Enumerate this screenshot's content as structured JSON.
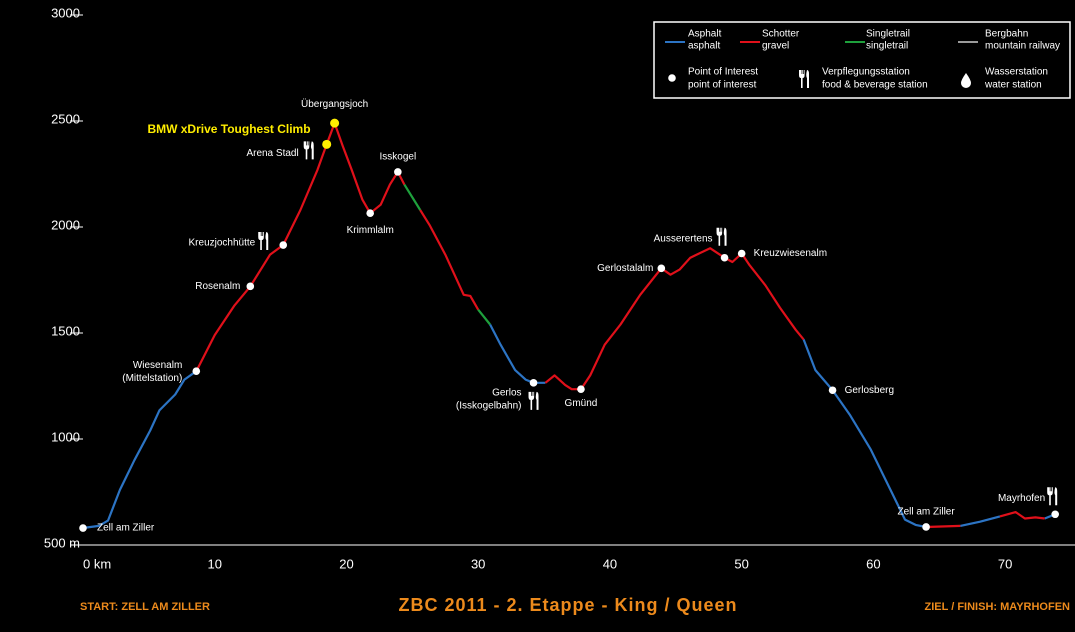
{
  "chart_data": {
    "type": "line",
    "title": "ZBC 2011 - 2. Etappe - King / Queen",
    "start_label": "START:  ZELL AM ZILLER",
    "finish_label": "ZIEL / FINISH:  MAYRHOFEN",
    "annotation": "BMW xDrive Toughest Climb",
    "xlim": [
      0,
      75
    ],
    "ylim": [
      500,
      3000
    ],
    "xticks": [
      {
        "value": 0,
        "label": "0 km"
      },
      10,
      20,
      30,
      40,
      50,
      60,
      70
    ],
    "yticks": [
      {
        "value": 500,
        "label": "500 m"
      },
      1000,
      1500,
      2000,
      2500,
      3000
    ],
    "series": [
      {
        "name": "Asphalt",
        "subtitle": "asphalt",
        "color": "#2c74c4",
        "x": [
          0,
          1.2,
          1.9,
          2.8,
          3.9,
          5.1,
          5.8,
          7.0,
          7.7,
          8.6,
          null,
          30.9,
          31.7,
          32.8,
          33.6,
          34.2,
          35.1,
          null,
          54.7,
          55.6,
          56.9,
          58.2,
          59.8,
          61.3,
          62.4,
          63.2,
          64.0,
          null,
          66.6,
          68.1,
          69.6,
          null,
          73.0,
          73.8
        ],
        "values": [
          580,
          590,
          615,
          760,
          900,
          1040,
          1135,
          1210,
          1280,
          1320,
          null,
          1540,
          1445,
          1325,
          1280,
          1265,
          1265,
          null,
          1470,
          1325,
          1230,
          1115,
          950,
          760,
          620,
          595,
          585,
          null,
          590,
          610,
          635,
          null,
          625,
          645
        ]
      },
      {
        "name": "Schotter",
        "subtitle": "gravel",
        "color": "#e0101a",
        "x": [
          8.6,
          10.0,
          11.5,
          12.7,
          14.2,
          15.2,
          16.5,
          17.8,
          18.5,
          19.1,
          19.7,
          20.4,
          21.2,
          21.8,
          22.6,
          23.3,
          23.9,
          24.4,
          null,
          25.6,
          26.3,
          27.5,
          28.2,
          28.9,
          29.4,
          30.0,
          null,
          35.1,
          35.8,
          36.6,
          37.1,
          37.8,
          38.5,
          39.6,
          40.8,
          42.3,
          43.9,
          44.6,
          45.3,
          46.1,
          47.6,
          48.7,
          49.3,
          50.0,
          50.6,
          51.8,
          52.9,
          54.1,
          54.7,
          null,
          64.0,
          66.6,
          null,
          69.6,
          70.8,
          71.5,
          72.3,
          73.0
        ],
        "values": [
          1320,
          1490,
          1630,
          1720,
          1870,
          1915,
          2080,
          2270,
          2390,
          2490,
          2385,
          2270,
          2130,
          2065,
          2105,
          2200,
          2260,
          2200,
          null,
          2080,
          2010,
          1870,
          1775,
          1680,
          1675,
          1610,
          null,
          1265,
          1300,
          1255,
          1235,
          1235,
          1300,
          1445,
          1540,
          1680,
          1805,
          1775,
          1800,
          1855,
          1900,
          1855,
          1835,
          1875,
          1820,
          1725,
          1620,
          1515,
          1470,
          null,
          585,
          590,
          null,
          635,
          655,
          625,
          630,
          625
        ]
      },
      {
        "name": "Singletrail",
        "subtitle": "singletrail",
        "color": "#1ea03c",
        "x": [
          24.4,
          25.6,
          null,
          30.0,
          30.9
        ],
        "values": [
          2200,
          2080,
          null,
          1610,
          1540
        ]
      },
      {
        "name": "Bergbahn",
        "subtitle": "mountain railway",
        "color": "#9a9a9a",
        "x": [],
        "values": []
      }
    ],
    "markers": [
      {
        "name": "Point of Interest",
        "subtitle": "point of interest"
      },
      {
        "name": "Verpflegungsstation",
        "subtitle": "food & beverage station"
      },
      {
        "name": "Wasserstation",
        "subtitle": "water station"
      }
    ],
    "points": [
      {
        "label": [
          "Zell am Ziller"
        ],
        "x": 0,
        "y": 580,
        "color": "#ffffff",
        "food": false
      },
      {
        "label": [
          "Wiesenalm",
          "(Mittelstation)"
        ],
        "x": 8.6,
        "y": 1320,
        "color": "#ffffff",
        "food": false
      },
      {
        "label": [
          "Rosenalm"
        ],
        "x": 12.7,
        "y": 1720,
        "color": "#ffffff",
        "food": false
      },
      {
        "label": [
          "Kreuzjochhütte"
        ],
        "x": 15.2,
        "y": 1915,
        "color": "#ffffff",
        "food": true
      },
      {
        "label": [
          "Arena Stadl"
        ],
        "x": 18.5,
        "y": 2390,
        "color": "#ffee00",
        "food": true
      },
      {
        "label": [
          "Übergangsjoch"
        ],
        "x": 19.1,
        "y": 2490,
        "color": "#ffee00",
        "food": false
      },
      {
        "label": [
          "Isskogel"
        ],
        "x": 23.9,
        "y": 2260,
        "color": "#ffffff",
        "food": false
      },
      {
        "label": [
          "Krimmlalm"
        ],
        "x": 21.8,
        "y": 2065,
        "color": "#ffffff",
        "food": false
      },
      {
        "label": [
          "Gerlos",
          "(Isskogelbahn)"
        ],
        "x": 34.2,
        "y": 1265,
        "color": "#ffffff",
        "food": true
      },
      {
        "label": [
          "Gmünd"
        ],
        "x": 37.8,
        "y": 1235,
        "color": "#ffffff",
        "food": false
      },
      {
        "label": [
          "Gerlostalalm"
        ],
        "x": 43.9,
        "y": 1805,
        "color": "#ffffff",
        "food": false
      },
      {
        "label": [
          "Ausserertens"
        ],
        "x": 48.7,
        "y": 1855,
        "color": "#ffffff",
        "food": true
      },
      {
        "label": [
          "Kreuzwiesenalm"
        ],
        "x": 50.0,
        "y": 1875,
        "color": "#ffffff",
        "food": false
      },
      {
        "label": [
          "Gerlosberg"
        ],
        "x": 56.9,
        "y": 1230,
        "color": "#ffffff",
        "food": false
      },
      {
        "label": [
          "Zell am Ziller"
        ],
        "x": 64.0,
        "y": 585,
        "color": "#ffffff",
        "food": false
      },
      {
        "label": [
          "Mayrhofen"
        ],
        "x": 73.8,
        "y": 645,
        "color": "#ffffff",
        "food": true
      }
    ]
  }
}
